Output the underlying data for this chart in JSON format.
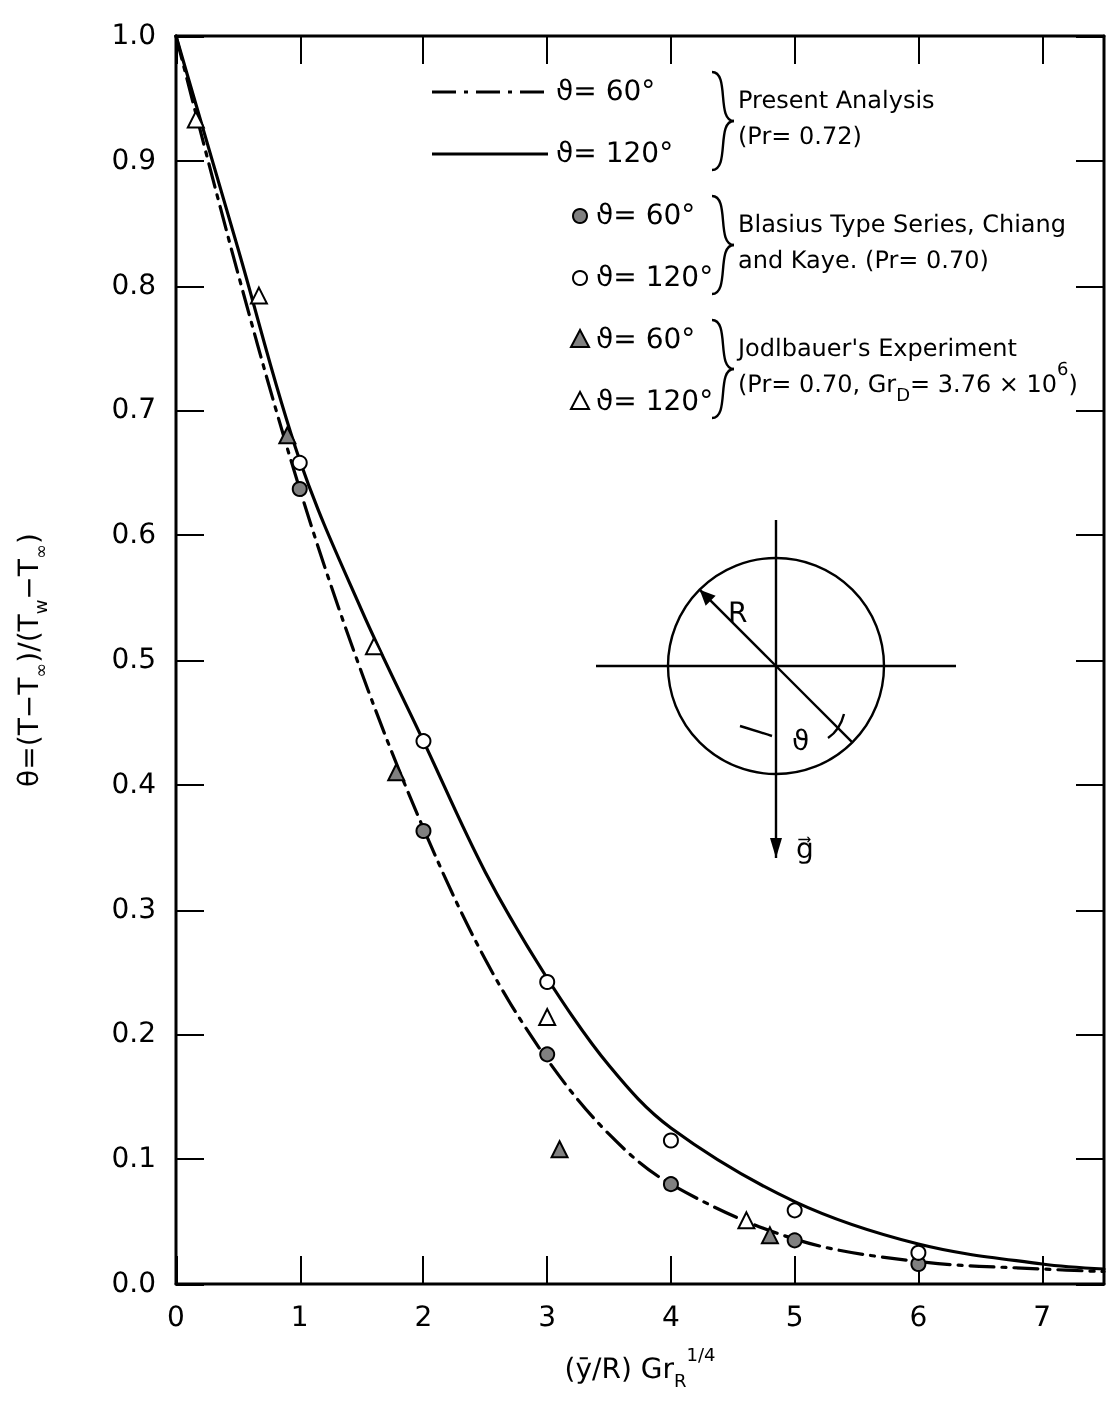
{
  "chart_data": {
    "type": "line",
    "xlabel": "(ȳ/R) Gr$_{R}$$^{1/4}$",
    "ylabel": "θ=(T−T$_{∞}$)/(T$_{w}$−T$_{∞}$)",
    "xlim": [
      0,
      7.5
    ],
    "xticks": [
      0,
      1,
      2,
      3,
      4,
      5,
      6,
      7
    ],
    "ylim": [
      0,
      1
    ],
    "yticks": [
      {
        "value": 0,
        "label": "0.0"
      },
      0.1,
      0.2,
      0.3,
      0.4,
      0.5,
      0.6,
      0.7,
      0.8,
      0.9,
      {
        "value": 1,
        "label": "1.0"
      }
    ],
    "legend": "top",
    "annotations": [
      "Present Analysis",
      "(Pr= 0.72)",
      "Blasius Type Series, Chiang",
      "and Kaye. (Pr= 0.70)",
      "Jodlbauer's Experiment",
      "(Pr= 0.70, Gr$_{D}$= 3.76 × 10$^{6}$)",
      "R",
      "ϑ",
      "g⃗"
    ],
    "series": [
      {
        "name": "ϑ= 60°",
        "color": "#000000",
        "line_style": "dashed",
        "x": [
          0,
          0.5,
          1,
          1.5,
          2,
          2.5,
          3,
          3.5,
          4,
          5,
          6,
          7,
          7.5
        ],
        "values": [
          1,
          0.81,
          0.637,
          0.49,
          0.365,
          0.26,
          0.18,
          0.12,
          0.08,
          0.036,
          0.018,
          0.012,
          0.01
        ]
      },
      {
        "name": "ϑ= 120°",
        "color": "#000000",
        "line_style": "solid",
        "x": [
          0,
          0.5,
          1,
          1.5,
          2,
          2.5,
          3,
          3.5,
          4,
          5,
          6,
          7,
          7.5
        ],
        "values": [
          1,
          0.83,
          0.66,
          0.54,
          0.435,
          0.33,
          0.245,
          0.175,
          0.125,
          0.066,
          0.032,
          0.016,
          0.012
        ]
      },
      {
        "name": "ϑ= 60°",
        "type": "scatter",
        "color": "#808080",
        "marker": "circle",
        "x": [
          1,
          2,
          3,
          4,
          5,
          6
        ],
        "values": [
          0.637,
          0.363,
          0.184,
          0.08,
          0.035,
          0.016
        ]
      },
      {
        "name": "ϑ= 120°",
        "type": "scatter",
        "color": "#ffffff",
        "marker": "circle",
        "x": [
          1,
          2,
          3,
          4,
          5,
          6
        ],
        "values": [
          0.658,
          0.435,
          0.242,
          0.115,
          0.059,
          0.025
        ]
      },
      {
        "name": "ϑ= 60°",
        "type": "scatter",
        "color": "#808080",
        "marker": "triangle",
        "x": [
          0.9,
          1.78,
          3.1,
          4.8
        ],
        "values": [
          0.68,
          0.41,
          0.108,
          0.039
        ]
      },
      {
        "name": "ϑ= 120°",
        "type": "scatter",
        "color": "#ffffff",
        "marker": "triangle",
        "x": [
          0.16,
          0.67,
          1.6,
          3,
          4.61
        ],
        "values": [
          0.933,
          0.792,
          0.511,
          0.214,
          0.051
        ]
      }
    ]
  }
}
